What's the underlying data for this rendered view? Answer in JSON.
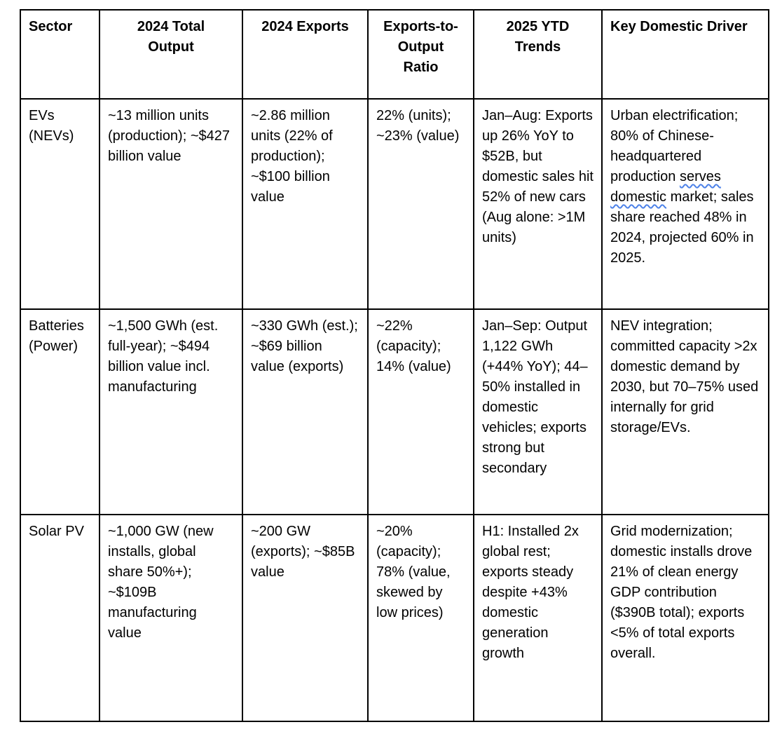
{
  "colors": {
    "background": "#ffffff",
    "text": "#000000",
    "border": "#000000",
    "spellcheck_underline": "#4d82e8"
  },
  "table": {
    "headers": [
      {
        "text": "Sector",
        "lines": [
          "Sector"
        ]
      },
      {
        "text": "2024 Total Output",
        "lines": [
          "2024 Total",
          "Output"
        ]
      },
      {
        "text": "2024 Exports",
        "lines": [
          "2024 Exports"
        ]
      },
      {
        "text": "Exports-to-Output Ratio",
        "lines": [
          "Exports-to-",
          "Output",
          "Ratio"
        ]
      },
      {
        "text": "2025 YTD Trends",
        "lines": [
          "2025 YTD",
          "Trends"
        ]
      },
      {
        "text": "Key Domestic Driver",
        "lines": [
          "Key Domestic Driver"
        ]
      }
    ],
    "rows": [
      {
        "cells": [
          "EVs (NEVs)",
          "~13 million units (production); ~$427 billion value",
          "~2.86 million units (22% of production); ~$100 billion value",
          "22% (units); ~23% (value)",
          "Jan–Aug: Exports up 26% YoY to $52B, but domestic sales hit 52% of new cars (Aug alone: >1M units)",
          "Urban electrification; 80% of Chinese-headquartered production serves domestic market; sales share reached 48% in 2024, projected 60% in 2025."
        ]
      },
      {
        "cells": [
          "Batteries (Power)",
          "~1,500 GWh (est. full-year); ~$494 billion value incl. manufacturing",
          "~330 GWh (est.); ~$69 billion value (exports)",
          "~22% (capacity); 14% (value)",
          "Jan–Sep: Output 1,122 GWh (+44% YoY); 44–50% installed in domestic vehicles; exports strong but secondary",
          "NEV integration; committed capacity >2x domestic demand by 2030, but 70–75% used internally for grid storage/EVs."
        ]
      },
      {
        "cells": [
          "Solar PV",
          "~1,000 GW (new installs, global share 50%+); ~$109B manufacturing value",
          "~200 GW (exports); ~$85B value",
          "~20% (capacity); 78% (value, skewed by low prices)",
          "H1: Installed 2x global rest; exports steady despite +43% domestic generation growth",
          "Grid modernization; domestic installs drove 21% of clean energy GDP contribution ($390B total); exports <5% of total exports overall."
        ]
      }
    ]
  },
  "spellcheck_underline": {
    "target_cell": "cell-evs-domestic-driver",
    "words": [
      "serves",
      "domestic"
    ]
  }
}
